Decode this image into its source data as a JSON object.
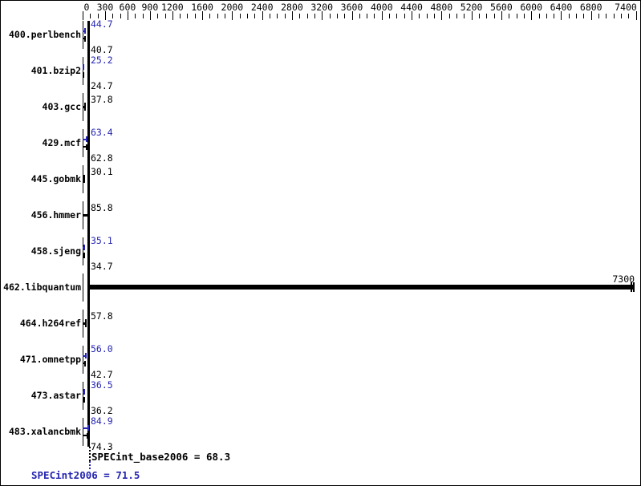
{
  "colors": {
    "peak_blue": "#2525b2",
    "base_black": "#000000"
  },
  "axis": {
    "tick_labels": [
      "0",
      "300",
      "600",
      "900",
      "1200",
      "1600",
      "2000",
      "2400",
      "2800",
      "3200",
      "3600",
      "4000",
      "4400",
      "4800",
      "5200",
      "5600",
      "6000",
      "6400",
      "6800",
      "7400"
    ],
    "minor_step": 100,
    "max": 7400
  },
  "benchmarks": [
    {
      "name": "400.perlbench",
      "peak": "44.7",
      "base": "40.7"
    },
    {
      "name": "401.bzip2",
      "peak": "25.2",
      "base": "24.7"
    },
    {
      "name": "403.gcc",
      "single": "37.8"
    },
    {
      "name": "429.mcf",
      "peak": "63.4",
      "base": "62.8"
    },
    {
      "name": "445.gobmk",
      "single": "30.1"
    },
    {
      "name": "456.hmmer",
      "single": "85.8"
    },
    {
      "name": "458.sjeng",
      "peak": "35.1",
      "base": "34.7"
    },
    {
      "name": "462.libquantum",
      "single": "7300",
      "wide": true
    },
    {
      "name": "464.h264ref",
      "single": "57.8"
    },
    {
      "name": "471.omnetpp",
      "peak": "56.0",
      "base": "42.7"
    },
    {
      "name": "473.astar",
      "peak": "36.5",
      "base": "36.2"
    },
    {
      "name": "483.xalancbmk",
      "peak": "84.9",
      "base": "74.3"
    }
  ],
  "summary": {
    "base_label": "SPECint_base2006 = 68.3",
    "peak_label": "SPECint2006 = 71.5"
  },
  "chart_data": {
    "type": "bar",
    "orientation": "horizontal",
    "title": "",
    "xlabel": "",
    "ylabel": "",
    "xlim": [
      0,
      7400
    ],
    "x_tick_labels": [
      0,
      300,
      600,
      900,
      1200,
      1600,
      2000,
      2400,
      2800,
      3200,
      3600,
      4000,
      4400,
      4800,
      5200,
      5600,
      6000,
      6400,
      6800,
      7400
    ],
    "minor_tick_step": 100,
    "grid": false,
    "categories": [
      "400.perlbench",
      "401.bzip2",
      "403.gcc",
      "429.mcf",
      "445.gobmk",
      "456.hmmer",
      "458.sjeng",
      "462.libquantum",
      "464.h264ref",
      "471.omnetpp",
      "473.astar",
      "483.xalancbmk"
    ],
    "series": [
      {
        "name": "SPECint2006 (peak)",
        "color": "#2525b2",
        "values": [
          44.7,
          25.2,
          37.8,
          63.4,
          30.1,
          85.8,
          35.1,
          7300,
          57.8,
          56.0,
          36.5,
          84.9
        ]
      },
      {
        "name": "SPECint_base2006 (base)",
        "color": "#000000",
        "values": [
          40.7,
          24.7,
          37.8,
          62.8,
          30.1,
          85.8,
          34.7,
          7300,
          57.8,
          42.7,
          36.2,
          74.3
        ]
      }
    ],
    "annotations": [
      {
        "text": "SPECint_base2006 = 68.3",
        "value": 68.3,
        "color": "#000000"
      },
      {
        "text": "SPECint2006 = 71.5",
        "value": 71.5,
        "color": "#2525b2"
      }
    ],
    "legend_position": "none"
  }
}
